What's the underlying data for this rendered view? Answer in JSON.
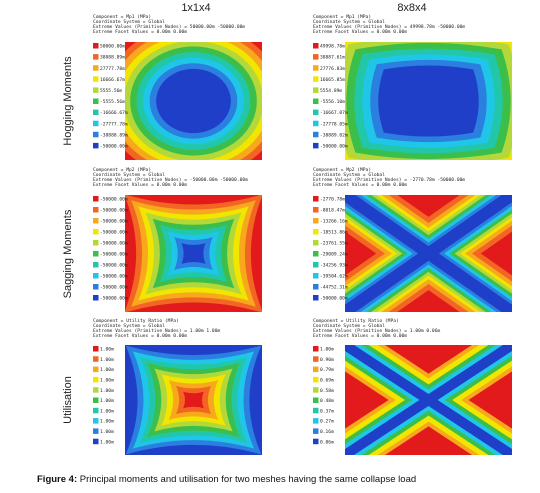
{
  "columns": [
    "1x1x4",
    "8x8x4"
  ],
  "rows": [
    "Hogging Moments",
    "Sagging Moments",
    "Utilisation"
  ],
  "panels": [
    {
      "lines": [
        "Component = Mp1 (MPa)",
        "Coordinate System = Global",
        "Extreme Values (Primitive Nodes) = 50000.00m -50000.00m",
        "Extreme Facet Values = 0.00m 0.00m"
      ],
      "legend": [
        "50000.00m",
        "38888.89m",
        "27777.78m",
        "16666.67m",
        "5555.56m",
        "-5555.56m",
        "-16666.67m",
        "-27777.78m",
        "-38888.89m",
        "-50000.00m"
      ]
    },
    {
      "lines": [
        "Component = Mp1 (MPa)",
        "Coordinate System = Global",
        "Extreme Values (Primitive Nodes) = 49998.78m -50000.00m",
        "Extreme Facet Values = 0.00m 0.00m"
      ],
      "legend": [
        "49998.78m",
        "38887.61m",
        "27776.83m",
        "16665.85m",
        "5554.89m",
        "-5556.10m",
        "-16667.07m",
        "-27778.05m",
        "-38889.02m",
        "-50000.00m"
      ]
    },
    {
      "lines": [
        "Component = Mp2 (MPa)",
        "Coordinate System = Global",
        "Extreme Values (Primitive Nodes) = -50000.00m -50000.00m",
        "Extreme Facet Values = 0.00m 0.00m"
      ],
      "legend": [
        "-50000.00m",
        "-50000.00m",
        "-50000.00m",
        "-50000.00m",
        "-50000.00m",
        "-50000.00m",
        "-50000.00m",
        "-50000.00m",
        "-50000.00m",
        "-50000.00m"
      ]
    },
    {
      "lines": [
        "Component = Mp2 (MPa)",
        "Coordinate System = Global",
        "Extreme Values (Primitive Nodes) = -2770.78m -50000.00m",
        "Extreme Facet Values = 0.00m 0.00m"
      ],
      "legend": [
        "-2770.78m",
        "-8018.47m",
        "-13266.16m",
        "-18513.86m",
        "-23761.55m",
        "-29009.24m",
        "-34256.93m",
        "-39504.62m",
        "-44752.31m",
        "-50000.00m"
      ]
    },
    {
      "lines": [
        "Component = Utility Ratio (MPa)",
        "Coordinate System = Global",
        "Extreme Values (Primitive Nodes) = 1.00m 1.00m",
        "Extreme Facet Values = 0.00m 0.00m"
      ],
      "legend": [
        "1.00m",
        "1.00m",
        "1.00m",
        "1.00m",
        "1.00m",
        "1.00m",
        "1.00m",
        "1.00m",
        "1.00m",
        "1.00m"
      ]
    },
    {
      "lines": [
        "Component = Utility Ratio (MPa)",
        "Coordinate System = Global",
        "Extreme Values (Primitive Nodes) = 1.00m 0.06m",
        "Extreme Facet Values = 0.00m 0.00m"
      ],
      "legend": [
        "1.00m",
        "0.90m",
        "0.79m",
        "0.69m",
        "0.58m",
        "0.48m",
        "0.37m",
        "0.27m",
        "0.16m",
        "0.06m"
      ]
    }
  ],
  "caption": {
    "label": "Figure 4:",
    "text": "Principal moments and utilisation for two meshes having the same collapse load"
  }
}
